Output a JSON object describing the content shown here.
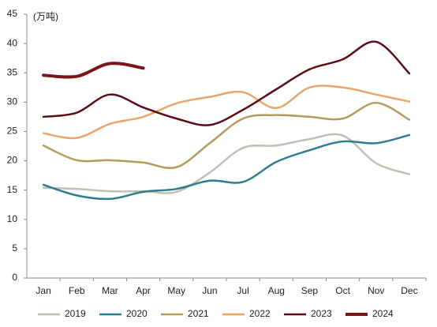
{
  "chart_data": {
    "type": "line",
    "unit_label": "(万吨)",
    "categories": [
      "Jan",
      "Feb",
      "Mar",
      "Apr",
      "May",
      "Jun",
      "Jul",
      "Aug",
      "Sep",
      "Oct",
      "Nov",
      "Dec"
    ],
    "ylim": [
      0,
      45
    ],
    "yticks": [
      0,
      5,
      10,
      15,
      20,
      25,
      30,
      35,
      40,
      45
    ],
    "grid": false,
    "smooth": true,
    "legend": "bottom",
    "series": [
      {
        "name": "2019",
        "color": "#bfbfb2",
        "width": 2.5,
        "values": [
          15.4,
          15.2,
          14.8,
          14.8,
          14.7,
          18.0,
          22.2,
          22.6,
          23.7,
          24.3,
          19.6,
          17.7
        ]
      },
      {
        "name": "2020",
        "color": "#2f7d8c",
        "width": 2.5,
        "values": [
          15.9,
          14.1,
          13.5,
          14.7,
          15.2,
          16.6,
          16.4,
          19.8,
          21.8,
          23.3,
          23.0,
          24.4
        ]
      },
      {
        "name": "2021",
        "color": "#b39c5c",
        "width": 2.5,
        "values": [
          22.6,
          20.1,
          20.1,
          19.7,
          18.9,
          23.0,
          27.2,
          27.8,
          27.5,
          27.2,
          29.9,
          27.0
        ]
      },
      {
        "name": "2022",
        "color": "#e8a66c",
        "width": 2.5,
        "values": [
          24.7,
          23.9,
          26.3,
          27.5,
          29.8,
          30.9,
          31.7,
          29.0,
          32.5,
          32.5,
          31.3,
          30.1
        ]
      },
      {
        "name": "2023",
        "color": "#5a0d14",
        "width": 2.5,
        "values": [
          27.5,
          28.2,
          31.3,
          29.1,
          27.2,
          26.1,
          28.7,
          32.2,
          35.6,
          37.3,
          40.3,
          34.9
        ]
      },
      {
        "name": "2024",
        "color": "#7b1519",
        "width": 4,
        "values": [
          34.6,
          34.4,
          36.6,
          35.8,
          null,
          null,
          null,
          null,
          null,
          null,
          null,
          null
        ]
      }
    ]
  }
}
